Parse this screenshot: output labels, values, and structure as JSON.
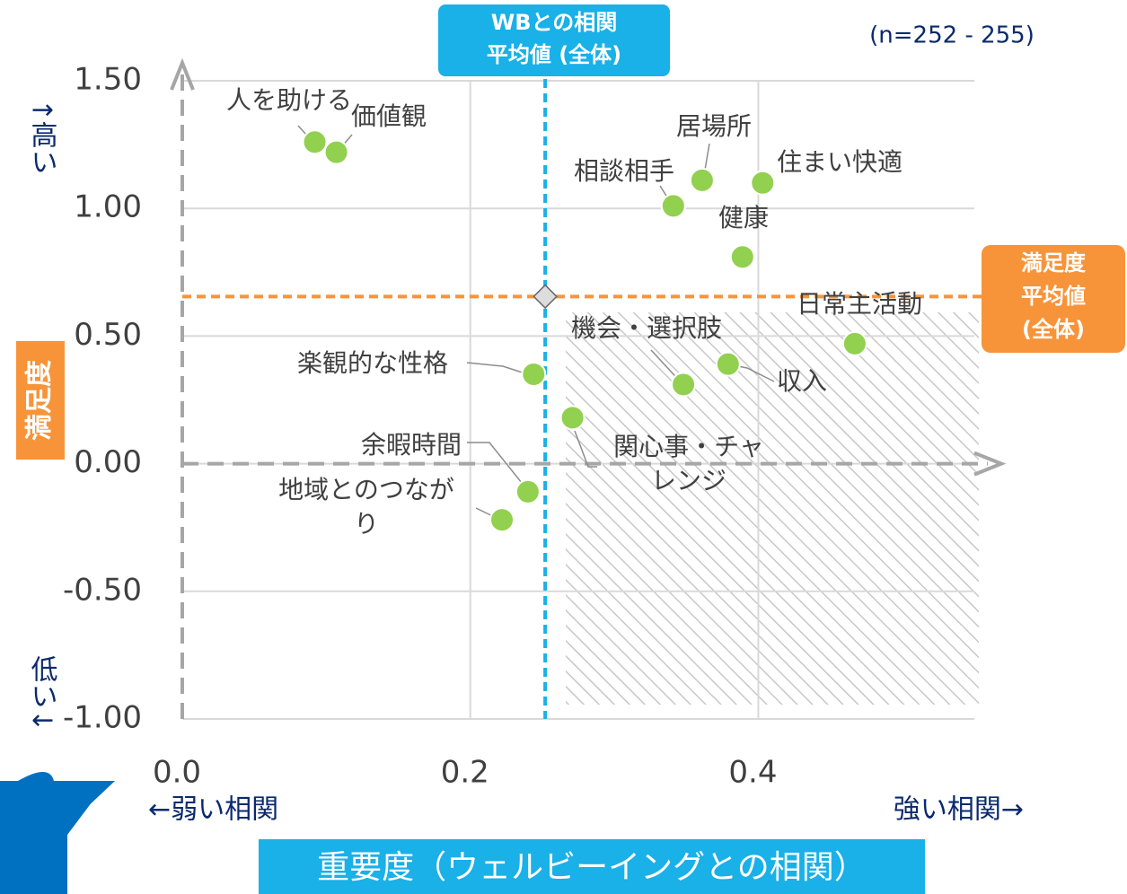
{
  "chart_data": {
    "type": "scatter",
    "note": "(n=252 - 255)",
    "x_label": "重要度（ウェルビーイングとの相関）",
    "x_low": "←弱い相関",
    "x_high": "強い相関→",
    "y_label": "満足度",
    "y_high": "↑高い",
    "y_low": "低い↓",
    "x_mean_label": "WBとの相関\n平均値 (全体)",
    "y_mean_label": "満足度\n平均値\n(全体)",
    "x_mean": 0.252,
    "y_mean": 0.655,
    "labels": [
      "人を助ける",
      "価値観",
      "相談相手",
      "居場所",
      "住まい快適",
      "健康",
      "日常主活動",
      "機会・選択肢",
      "収入",
      "楽観的な性格",
      "関心事・チャレンジ",
      "余暇時間",
      "地域とのつながり"
    ],
    "x": [
      0.092,
      0.107,
      0.341,
      0.361,
      0.403,
      0.389,
      0.467,
      0.348,
      0.379,
      0.244,
      0.271,
      0.24,
      0.222
    ],
    "values": [
      1.26,
      1.22,
      1.01,
      1.11,
      1.1,
      0.81,
      0.47,
      0.31,
      0.39,
      0.35,
      0.18,
      -0.11,
      -0.22
    ],
    "color": "#92d050",
    "xlim": [
      0,
      0.55
    ],
    "xticks": [
      {
        "value": 0,
        "label": "0.0"
      },
      0.2,
      0.4
    ],
    "ylim": [
      -1,
      1.5
    ],
    "yticks": [
      {
        "value": 1.5,
        "label": "1.50"
      },
      {
        "value": 1,
        "label": "1.00"
      },
      {
        "value": 0.5,
        "label": "0.50"
      },
      {
        "value": 0,
        "label": "0.00"
      },
      {
        "value": -0.5,
        "label": "-0.50"
      },
      {
        "value": -1,
        "label": "-1.00"
      }
    ],
    "grid": true
  }
}
